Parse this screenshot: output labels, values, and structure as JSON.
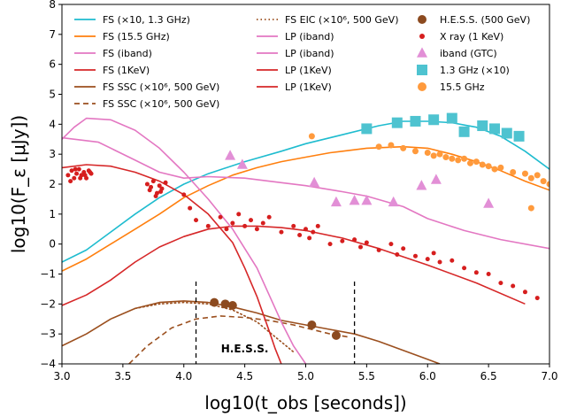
{
  "chart_data": {
    "type": "line",
    "xlabel": "log10(t_obs [seconds])",
    "ylabel": "log10(F_ε [μJy])",
    "xlim": [
      3.0,
      7.0
    ],
    "ylim": [
      -4,
      8
    ],
    "xticks": [
      "3.0",
      "3.5",
      "4.0",
      "4.5",
      "5.0",
      "5.5",
      "6.0",
      "6.5",
      "7.0"
    ],
    "yticks": [
      "−4",
      "−3",
      "−2",
      "−1",
      "0",
      "1",
      "2",
      "3",
      "4",
      "5",
      "6",
      "7",
      "8"
    ],
    "grid": false,
    "legend_placement": "top",
    "annotation": {
      "text": "H.E.S.S.",
      "x": 4.5,
      "y": -3.5
    },
    "vlines": [
      4.1,
      5.4
    ],
    "colors": {
      "cyan": "#1fbccf",
      "orange": "#ff7f0e",
      "pink": "#e377c2",
      "red": "#d62728",
      "brown": "#9b4f1e",
      "hess": "#8c4a1f",
      "xray": "#d61e1e",
      "orange_pt": "#ff9a3c",
      "pink_pt": "#e28fd6",
      "cyan_pt": "#4ec3d0"
    },
    "series": [
      {
        "name": "FS (×10, 1.3 GHz)",
        "color": "#1fbccf",
        "style": "solid",
        "x": [
          3.0,
          3.2,
          3.4,
          3.6,
          3.8,
          4.0,
          4.2,
          4.5,
          4.8,
          5.0,
          5.3,
          5.6,
          5.8,
          6.0,
          6.2,
          6.4,
          6.6,
          6.8,
          7.0
        ],
        "y": [
          -0.6,
          -0.2,
          0.4,
          1.0,
          1.55,
          2.0,
          2.35,
          2.75,
          3.1,
          3.35,
          3.65,
          3.95,
          4.1,
          4.1,
          4.05,
          3.9,
          3.6,
          3.1,
          2.5
        ]
      },
      {
        "name": "FS (15.5 GHz)",
        "color": "#ff7f0e",
        "style": "solid",
        "x": [
          3.0,
          3.2,
          3.4,
          3.6,
          3.8,
          4.0,
          4.2,
          4.4,
          4.6,
          4.8,
          5.0,
          5.2,
          5.5,
          5.8,
          6.0,
          6.2,
          6.4,
          6.6,
          6.8,
          7.0
        ],
        "y": [
          -0.9,
          -0.5,
          0.0,
          0.5,
          1.0,
          1.55,
          1.95,
          2.3,
          2.55,
          2.75,
          2.9,
          3.05,
          3.2,
          3.25,
          3.2,
          3.0,
          2.75,
          2.45,
          2.1,
          1.8
        ]
      },
      {
        "name": "FS (iband)",
        "color": "#e377c2",
        "style": "solid",
        "x": [
          3.0,
          3.3,
          3.6,
          3.8,
          4.0,
          4.2,
          4.5,
          4.8,
          5.0,
          5.3,
          5.5,
          5.8,
          6.0,
          6.3,
          6.6,
          7.0
        ],
        "y": [
          3.55,
          3.4,
          2.8,
          2.4,
          2.2,
          2.25,
          2.2,
          2.05,
          1.95,
          1.75,
          1.6,
          1.25,
          0.85,
          0.45,
          0.15,
          -0.15
        ]
      },
      {
        "name": "FS (1KeV)",
        "color": "#d62728",
        "style": "solid",
        "x": [
          3.0,
          3.2,
          3.4,
          3.6,
          3.8,
          4.0,
          4.2,
          4.4,
          4.6,
          4.8,
          5.0,
          5.3,
          5.6,
          6.0,
          6.4,
          6.8
        ],
        "y": [
          -2.05,
          -1.7,
          -1.2,
          -0.6,
          -0.1,
          0.25,
          0.5,
          0.6,
          0.6,
          0.55,
          0.45,
          0.2,
          -0.15,
          -0.7,
          -1.3,
          -2.0
        ]
      },
      {
        "name": "FS SSC (×10⁶, 500 GeV)",
        "color": "#9b4f1e",
        "style": "solid",
        "x": [
          3.0,
          3.2,
          3.4,
          3.6,
          3.8,
          4.0,
          4.2,
          4.4,
          4.6,
          4.8,
          5.0,
          5.2,
          5.4,
          5.6,
          5.8,
          6.0,
          6.1
        ],
        "y": [
          -3.4,
          -3.0,
          -2.5,
          -2.15,
          -1.95,
          -1.9,
          -1.95,
          -2.1,
          -2.3,
          -2.55,
          -2.7,
          -2.85,
          -3.0,
          -3.25,
          -3.55,
          -3.85,
          -4.0
        ]
      },
      {
        "name": "FS SSC (×10⁶, 500 GeV)",
        "color": "#9b4f1e",
        "style": "dashed",
        "x": [
          3.55,
          3.7,
          3.9,
          4.1,
          4.3,
          4.5,
          4.7,
          4.9,
          5.05,
          5.2,
          5.35
        ],
        "y": [
          -4.0,
          -3.4,
          -2.8,
          -2.5,
          -2.4,
          -2.45,
          -2.55,
          -2.7,
          -2.85,
          -3.0,
          -3.1
        ]
      },
      {
        "name": "FS EIC (×10⁶, 500 GeV)",
        "color": "#9b4f1e",
        "style": "dotted",
        "x": [
          3.6,
          3.8,
          4.0,
          4.2,
          4.4,
          4.6,
          4.75,
          4.9
        ],
        "y": [
          -2.15,
          -2.0,
          -1.95,
          -2.0,
          -2.2,
          -2.6,
          -3.1,
          -3.6
        ]
      },
      {
        "name": "LP (iband)",
        "color": "#e377c2",
        "style": "solid",
        "x": [
          3.0,
          3.1,
          3.2,
          3.4,
          3.6,
          3.8,
          4.0,
          4.2,
          4.4,
          4.6,
          4.8,
          4.9,
          5.0
        ],
        "y": [
          3.5,
          3.9,
          4.2,
          4.15,
          3.8,
          3.2,
          2.4,
          1.5,
          0.5,
          -0.8,
          -2.6,
          -3.4,
          -4.0
        ]
      },
      {
        "name": "LP (1KeV)",
        "color": "#d62728",
        "style": "solid",
        "x": [
          3.0,
          3.2,
          3.4,
          3.6,
          3.8,
          4.0,
          4.2,
          4.4,
          4.5,
          4.6,
          4.7,
          4.75,
          4.8
        ],
        "y": [
          2.55,
          2.65,
          2.6,
          2.4,
          2.1,
          1.65,
          1.0,
          0.05,
          -0.8,
          -1.75,
          -2.9,
          -3.5,
          -4.0
        ]
      }
    ],
    "scatter": [
      {
        "name": "H.E.S.S. (500 GeV)",
        "marker": "circle",
        "color": "#8c4a1f",
        "size": 5,
        "x": [
          4.25,
          4.34,
          4.4,
          5.05,
          5.25
        ],
        "y": [
          -1.95,
          -2.0,
          -2.05,
          -2.7,
          -3.05
        ]
      },
      {
        "name": "X ray (1 KeV)",
        "marker": "circle",
        "color": "#d61e1e",
        "size": 2.5,
        "x": [
          3.05,
          3.08,
          3.1,
          3.12,
          3.14,
          3.16,
          3.18,
          3.2,
          3.22,
          3.24,
          3.07,
          3.11,
          3.15,
          3.19,
          3.23,
          3.7,
          3.72,
          3.75,
          3.78,
          3.8,
          3.82,
          3.85,
          3.73,
          3.77,
          3.81,
          4.0,
          4.05,
          4.1,
          4.2,
          4.3,
          4.35,
          4.4,
          4.45,
          4.5,
          4.55,
          4.6,
          4.65,
          4.7,
          4.8,
          4.9,
          4.95,
          5.0,
          5.03,
          5.06,
          5.1,
          5.2,
          5.3,
          5.4,
          5.45,
          5.5,
          5.6,
          5.7,
          5.75,
          5.8,
          5.9,
          6.0,
          6.05,
          6.1,
          6.2,
          6.3,
          6.4,
          6.5,
          6.6,
          6.7,
          6.8,
          6.9
        ],
        "y": [
          2.3,
          2.45,
          2.2,
          2.35,
          2.5,
          2.3,
          2.4,
          2.2,
          2.45,
          2.35,
          2.1,
          2.5,
          2.2,
          2.3,
          2.4,
          2.0,
          1.8,
          2.1,
          1.7,
          1.95,
          1.85,
          2.05,
          1.9,
          1.6,
          1.75,
          1.65,
          1.2,
          0.8,
          0.6,
          0.9,
          0.5,
          0.7,
          1.0,
          0.6,
          0.8,
          0.5,
          0.7,
          0.9,
          0.4,
          0.6,
          0.3,
          0.5,
          0.2,
          0.4,
          0.6,
          0.0,
          0.1,
          0.15,
          -0.1,
          0.05,
          -0.2,
          0.0,
          -0.35,
          -0.15,
          -0.4,
          -0.5,
          -0.3,
          -0.6,
          -0.55,
          -0.8,
          -0.95,
          -1.0,
          -1.3,
          -1.4,
          -1.6,
          -1.8
        ]
      },
      {
        "name": "iband (GTC)",
        "marker": "triangle",
        "color": "#e28fd6",
        "size": 6,
        "x": [
          4.38,
          4.48,
          5.07,
          5.25,
          5.4,
          5.5,
          5.72,
          5.95,
          6.07,
          6.5
        ],
        "y": [
          2.95,
          2.65,
          2.05,
          1.4,
          1.45,
          1.45,
          1.4,
          1.95,
          2.15,
          1.35
        ]
      },
      {
        "name": "1.3 GHz (×10)",
        "marker": "square",
        "color": "#4ec3d0",
        "size": 6,
        "x": [
          5.5,
          5.75,
          5.9,
          6.05,
          6.2,
          6.3,
          6.45,
          6.55,
          6.65,
          6.75
        ],
        "y": [
          3.85,
          4.05,
          4.1,
          4.15,
          4.2,
          3.75,
          3.95,
          3.85,
          3.7,
          3.6
        ]
      },
      {
        "name": "15.5 GHz",
        "marker": "circle",
        "color": "#ff9a3c",
        "size": 3.5,
        "x": [
          5.05,
          5.6,
          5.7,
          5.8,
          5.9,
          6.0,
          6.05,
          6.1,
          6.15,
          6.2,
          6.25,
          6.3,
          6.35,
          6.4,
          6.45,
          6.5,
          6.55,
          6.6,
          6.7,
          6.8,
          6.85,
          6.9,
          6.95,
          7.0,
          6.85
        ],
        "y": [
          3.6,
          3.25,
          3.3,
          3.2,
          3.1,
          3.05,
          2.95,
          3.0,
          2.9,
          2.85,
          2.8,
          2.85,
          2.7,
          2.75,
          2.65,
          2.6,
          2.5,
          2.55,
          2.4,
          2.35,
          2.2,
          2.3,
          2.1,
          2.0,
          1.2
        ]
      }
    ],
    "legend": [
      {
        "label": "FS (×10, 1.3 GHz)",
        "kind": "line",
        "color": "#1fbccf",
        "style": "solid"
      },
      {
        "label": "FS (15.5 GHz)",
        "kind": "line",
        "color": "#ff7f0e",
        "style": "solid"
      },
      {
        "label": "FS (iband)",
        "kind": "line",
        "color": "#e377c2",
        "style": "solid"
      },
      {
        "label": "FS (1KeV)",
        "kind": "line",
        "color": "#d62728",
        "style": "solid"
      },
      {
        "label": "FS SSC (×10⁶, 500 GeV)",
        "kind": "line",
        "color": "#9b4f1e",
        "style": "solid"
      },
      {
        "label": "FS SSC (×10⁶, 500 GeV)",
        "kind": "line",
        "color": "#9b4f1e",
        "style": "dashed"
      },
      {
        "label": "FS EIC (×10⁶, 500 GeV)",
        "kind": "line",
        "color": "#9b4f1e",
        "style": "dotted"
      },
      {
        "label": "LP (iband)",
        "kind": "line",
        "color": "#e377c2",
        "style": "solid"
      },
      {
        "label": "LP (iband)",
        "kind": "line",
        "color": "#e377c2",
        "style": "solid"
      },
      {
        "label": "LP (1KeV)",
        "kind": "line",
        "color": "#d62728",
        "style": "solid"
      },
      {
        "label": "LP (1KeV)",
        "kind": "line",
        "color": "#d62728",
        "style": "solid"
      },
      {
        "label": "H.E.S.S. (500 GeV)",
        "kind": "circle",
        "color": "#8c4a1f"
      },
      {
        "label": "X ray (1 KeV)",
        "kind": "circle-small",
        "color": "#d61e1e"
      },
      {
        "label": "iband (GTC)",
        "kind": "triangle",
        "color": "#e28fd6"
      },
      {
        "label": "1.3 GHz (×10)",
        "kind": "square",
        "color": "#4ec3d0"
      },
      {
        "label": "15.5 GHz",
        "kind": "circle",
        "color": "#ff9a3c"
      }
    ]
  }
}
